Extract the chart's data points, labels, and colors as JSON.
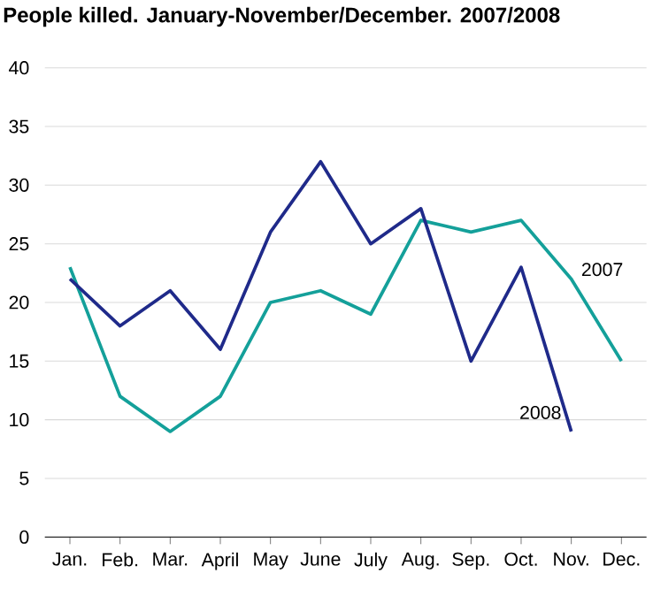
{
  "chart_data": {
    "type": "line",
    "title": "People killed. January-November/December. 2007/2008",
    "categories": [
      "Jan.",
      "Feb.",
      "Mar.",
      "April",
      "May",
      "June",
      "July",
      "Aug.",
      "Sep.",
      "Oct.",
      "Nov.",
      "Dec."
    ],
    "series": [
      {
        "name": "2007",
        "color": "#14a09a",
        "values": [
          23,
          12,
          9,
          12,
          20,
          21,
          19,
          27,
          26,
          27,
          22,
          15
        ]
      },
      {
        "name": "2008",
        "color": "#1f2a8a",
        "values": [
          22,
          18,
          21,
          16,
          26,
          32,
          25,
          28,
          15,
          23,
          9,
          null
        ]
      }
    ],
    "ylim": [
      0,
      40
    ],
    "yticks": [
      0,
      5,
      10,
      15,
      20,
      25,
      30,
      35,
      40
    ],
    "grid": "y",
    "legend": false,
    "marker": "none",
    "line_style": "solid"
  }
}
